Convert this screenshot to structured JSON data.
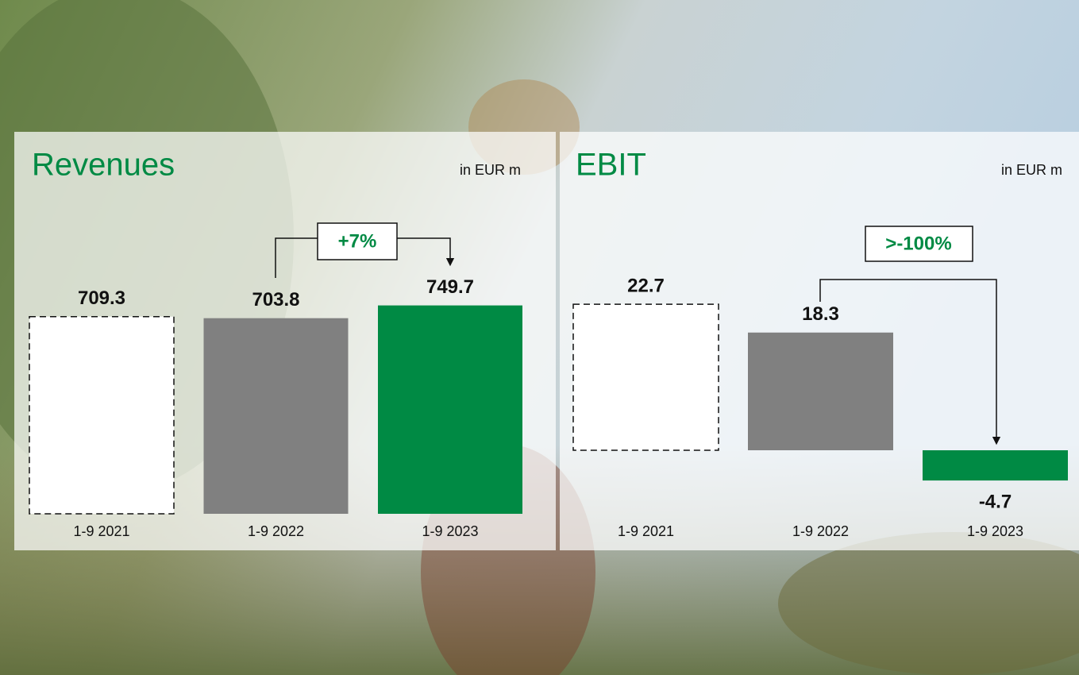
{
  "chart_data": [
    {
      "type": "bar",
      "title": "Revenues",
      "unit_label": "in EUR m",
      "categories": [
        "1-9 2021",
        "1-9 2022",
        "1-9 2023"
      ],
      "values": [
        709.3,
        703.8,
        749.7
      ],
      "colors": [
        "#ffffff",
        "#808080",
        "#008a44"
      ],
      "dashed": [
        true,
        false,
        false
      ],
      "ylim": [
        0,
        800
      ],
      "annotation": "+7%"
    },
    {
      "type": "bar",
      "title": "EBIT",
      "unit_label": "in EUR m",
      "categories": [
        "1-9 2021",
        "1-9 2022",
        "1-9 2023"
      ],
      "values": [
        22.7,
        18.3,
        -4.7
      ],
      "colors": [
        "#ffffff",
        "#808080",
        "#008a44"
      ],
      "dashed": [
        true,
        false,
        false
      ],
      "ylim": [
        -5,
        25
      ],
      "annotation": ">-100%"
    }
  ]
}
